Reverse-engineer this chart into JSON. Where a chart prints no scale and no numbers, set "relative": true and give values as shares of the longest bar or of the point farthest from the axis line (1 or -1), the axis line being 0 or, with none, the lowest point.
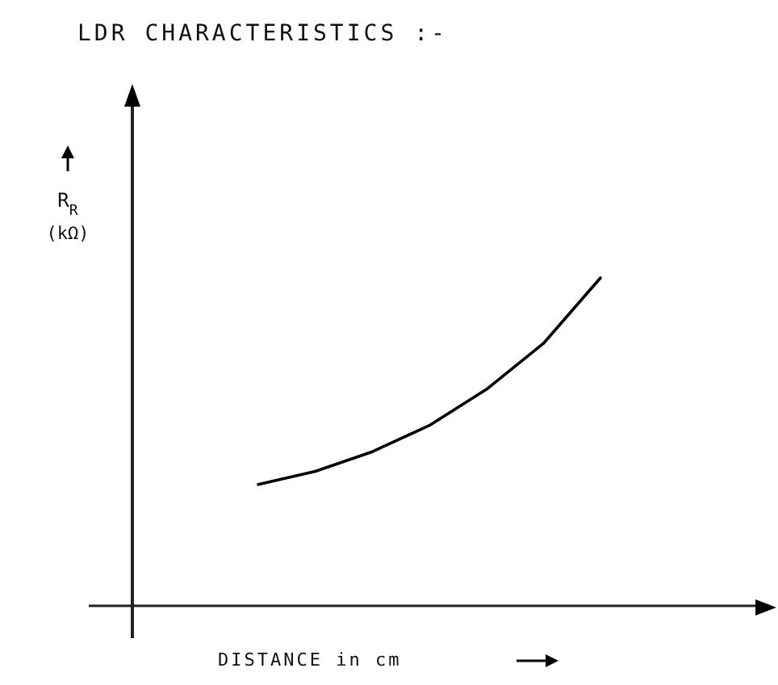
{
  "chart_data": {
    "type": "line",
    "title": "LDR CHARACTERISTICS :-",
    "xlabel": "DISTANCE in cm",
    "annotations": [
      "R$_{R}$ (kΩ)"
    ],
    "relative": true,
    "categories": [
      null,
      null,
      null,
      null,
      null,
      null,
      null
    ],
    "series": [
      {
        "color": "#000000",
        "values": [
          0.37,
          0.41,
          0.47,
          0.55,
          0.66,
          0.8,
          1
        ]
      }
    ]
  }
}
